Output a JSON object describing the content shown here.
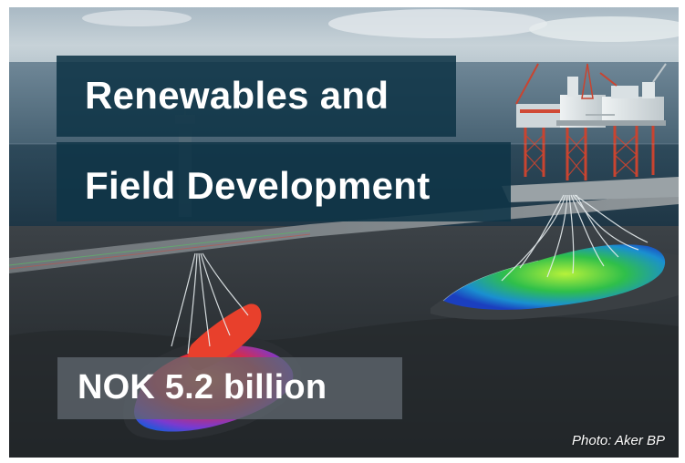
{
  "slide": {
    "title_line_1": "Renewables and",
    "title_line_2": "Field Development",
    "value": "NOK 5.2 billion",
    "photo_credit": "Photo: Aker BP"
  },
  "colors": {
    "title_box": "#0f3447",
    "value_box": "#5f676e",
    "text": "#ffffff"
  }
}
